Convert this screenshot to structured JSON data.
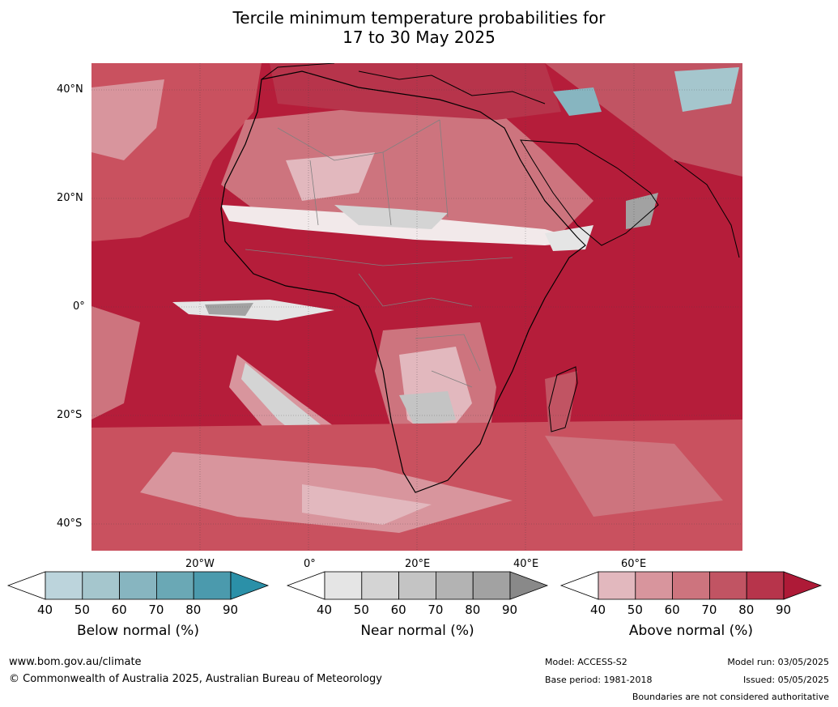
{
  "title_line1": "Tercile minimum temperature probabilities for",
  "title_line2": "17 to 30 May 2025",
  "lat_labels": [
    "40°N",
    "20°N",
    "0°",
    "20°S",
    "40°S"
  ],
  "lon_labels": [
    "20°W",
    "0°",
    "20°E",
    "40°E",
    "60°E"
  ],
  "colorbars": [
    {
      "label": "Below normal (%)",
      "ticks": [
        "40",
        "50",
        "60",
        "70",
        "80",
        "90"
      ],
      "colors": [
        "#bcd4dc",
        "#a5c6cd",
        "#87b5c0",
        "#6aa8b5",
        "#4b9aad"
      ],
      "over": "#2b90a8"
    },
    {
      "label": "Near normal (%)",
      "ticks": [
        "40",
        "50",
        "60",
        "70",
        "80",
        "90"
      ],
      "colors": [
        "#e5e5e5",
        "#d4d4d4",
        "#c4c4c4",
        "#b3b3b3",
        "#a2a2a2"
      ],
      "over": "#898989"
    },
    {
      "label": "Above normal (%)",
      "ticks": [
        "40",
        "50",
        "60",
        "70",
        "80",
        "90"
      ],
      "colors": [
        "#e2b8be",
        "#d8959d",
        "#cd747e",
        "#c15463",
        "#b7344b"
      ],
      "over": "#ae1a37"
    }
  ],
  "footer": {
    "url": "www.bom.gov.au/climate",
    "copyright": "© Commonwealth of Australia 2025, Australian Bureau of Meteorology",
    "model": "Model: ACCESS-S2",
    "base_period": "Base period: 1981-2018",
    "model_run": "Model run: 03/05/2025",
    "issued": "Issued: 05/05/2025",
    "disclaimer": "Boundaries are not considered authoritative"
  }
}
